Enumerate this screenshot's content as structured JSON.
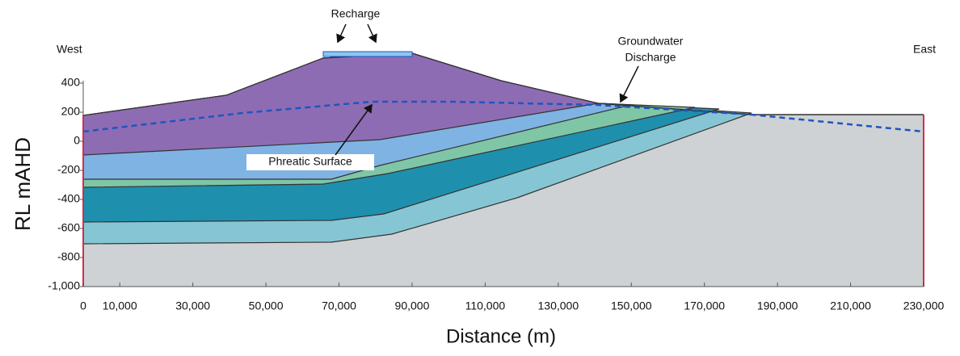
{
  "chart_data": {
    "type": "cross-section",
    "x_label": "Distance (m)",
    "y_label": "RL mAHD",
    "xlim": [
      0,
      230000
    ],
    "ylim": [
      -1000,
      400
    ],
    "xticks": [
      0,
      {
        "value": 10000,
        "label": "10,000"
      },
      {
        "value": 30000,
        "label": "30,000"
      },
      {
        "value": 50000,
        "label": "50,000"
      },
      {
        "value": 70000,
        "label": "70,000"
      },
      {
        "value": 90000,
        "label": "90,000"
      },
      {
        "value": 110000,
        "label": "110,000"
      },
      {
        "value": 130000,
        "label": "130,000"
      },
      {
        "value": 150000,
        "label": "150,000"
      },
      {
        "value": 170000,
        "label": "170,000"
      },
      {
        "value": 190000,
        "label": "190,000"
      },
      {
        "value": 210000,
        "label": "210,000"
      },
      {
        "value": 230000,
        "label": "230,000"
      }
    ],
    "yticks": [
      400,
      200,
      0,
      -200,
      -400,
      -600,
      -800,
      {
        "value": -1000,
        "label": "-1,000"
      }
    ],
    "annotations": {
      "west": "West",
      "east": "East",
      "recharge": "Recharge",
      "discharge": [
        "Groundwater",
        "Discharge"
      ],
      "phreatic": "Phreatic Surface"
    }
  }
}
